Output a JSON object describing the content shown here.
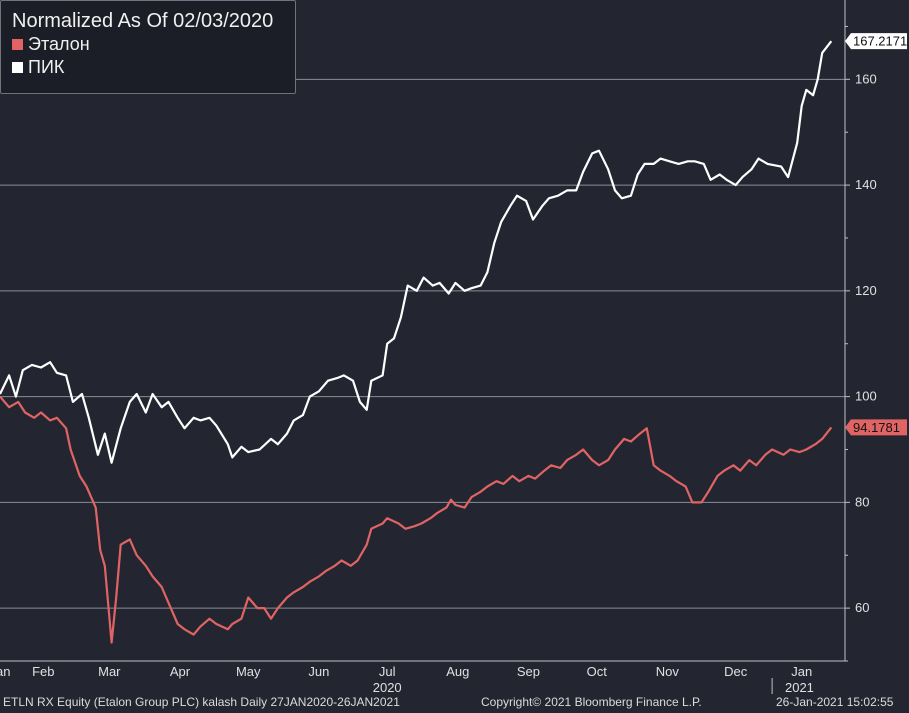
{
  "legend": {
    "title": "Normalized As Of 02/03/2020",
    "items": [
      {
        "label": "Эталон",
        "color": "#e06464"
      },
      {
        "label": "ПИК",
        "color": "#ffffff"
      }
    ]
  },
  "footer": {
    "left": "ETLN RX Equity (Etalon Group PLC) kalash  Daily 27JAN2020-26JAN2021",
    "center": "Copyright© 2021 Bloomberg Finance L.P.",
    "right": "26-Jan-2021 15:02:55"
  },
  "chart_data": {
    "type": "line",
    "title": "Normalized As Of 02/03/2020",
    "x_labels": [
      {
        "date": "2020-01-27",
        "label": "Jan"
      },
      {
        "date": "2020-02-15",
        "label": "Feb"
      },
      {
        "date": "2020-03-15",
        "label": "Mar"
      },
      {
        "date": "2020-04-15",
        "label": "Apr"
      },
      {
        "date": "2020-05-15",
        "label": "May"
      },
      {
        "date": "2020-06-15",
        "label": "Jun"
      },
      {
        "date": "2020-07-15",
        "label": "Jul"
      },
      {
        "date": "2020-08-15",
        "label": "Aug"
      },
      {
        "date": "2020-09-15",
        "label": "Sep"
      },
      {
        "date": "2020-10-15",
        "label": "Oct"
      },
      {
        "date": "2020-11-15",
        "label": "Nov"
      },
      {
        "date": "2020-12-15",
        "label": "Dec"
      },
      {
        "date": "2021-01-13",
        "label": "Jan"
      }
    ],
    "year_labels": [
      {
        "date": "2020-07-15",
        "label": "2020"
      },
      {
        "date": "2021-01-12",
        "label": "2021"
      }
    ],
    "x_range": [
      "2020-01-27",
      "2021-02-01"
    ],
    "y_ticks": [
      60,
      80,
      100,
      120,
      140,
      160
    ],
    "ylim": [
      50,
      175
    ],
    "grid": true,
    "last_values": [
      {
        "series": "ПИК",
        "label": "167.2171",
        "value": 167.2171
      },
      {
        "series": "Эталон",
        "label": "94.1781",
        "value": 94.1781
      }
    ],
    "series": [
      {
        "name": "ПИК",
        "color": "#ffffff",
        "points": [
          [
            "2020-01-27",
            100.5
          ],
          [
            "2020-01-31",
            104
          ],
          [
            "2020-02-03",
            100
          ],
          [
            "2020-02-06",
            105
          ],
          [
            "2020-02-10",
            106
          ],
          [
            "2020-02-14",
            105.5
          ],
          [
            "2020-02-18",
            106.5
          ],
          [
            "2020-02-21",
            104.5
          ],
          [
            "2020-02-25",
            104
          ],
          [
            "2020-02-28",
            99
          ],
          [
            "2020-03-03",
            100.5
          ],
          [
            "2020-03-06",
            96
          ],
          [
            "2020-03-10",
            89
          ],
          [
            "2020-03-13",
            93
          ],
          [
            "2020-03-16",
            87.5
          ],
          [
            "2020-03-20",
            94
          ],
          [
            "2020-03-24",
            99
          ],
          [
            "2020-03-27",
            100.5
          ],
          [
            "2020-03-31",
            97
          ],
          [
            "2020-04-03",
            100.5
          ],
          [
            "2020-04-07",
            98
          ],
          [
            "2020-04-10",
            99
          ],
          [
            "2020-04-14",
            96
          ],
          [
            "2020-04-17",
            94
          ],
          [
            "2020-04-21",
            96
          ],
          [
            "2020-04-24",
            95.5
          ],
          [
            "2020-04-28",
            96
          ],
          [
            "2020-05-01",
            94.5
          ],
          [
            "2020-05-06",
            91
          ],
          [
            "2020-05-08",
            88.5
          ],
          [
            "2020-05-12",
            90.5
          ],
          [
            "2020-05-15",
            89.5
          ],
          [
            "2020-05-20",
            90
          ],
          [
            "2020-05-25",
            92
          ],
          [
            "2020-05-28",
            91
          ],
          [
            "2020-06-01",
            93
          ],
          [
            "2020-06-04",
            95.5
          ],
          [
            "2020-06-08",
            96.5
          ],
          [
            "2020-06-11",
            100
          ],
          [
            "2020-06-15",
            101
          ],
          [
            "2020-06-19",
            103
          ],
          [
            "2020-06-23",
            103.5
          ],
          [
            "2020-06-26",
            104
          ],
          [
            "2020-06-30",
            103
          ],
          [
            "2020-07-03",
            99
          ],
          [
            "2020-07-06",
            97.5
          ],
          [
            "2020-07-08",
            103
          ],
          [
            "2020-07-13",
            104
          ],
          [
            "2020-07-15",
            110
          ],
          [
            "2020-07-18",
            111
          ],
          [
            "2020-07-21",
            115
          ],
          [
            "2020-07-24",
            121
          ],
          [
            "2020-07-28",
            120
          ],
          [
            "2020-07-31",
            122.5
          ],
          [
            "2020-08-04",
            121
          ],
          [
            "2020-08-07",
            121.5
          ],
          [
            "2020-08-11",
            119.5
          ],
          [
            "2020-08-14",
            121.5
          ],
          [
            "2020-08-18",
            120
          ],
          [
            "2020-08-21",
            120.5
          ],
          [
            "2020-08-25",
            121
          ],
          [
            "2020-08-28",
            123.5
          ],
          [
            "2020-08-31",
            129
          ],
          [
            "2020-09-03",
            133
          ],
          [
            "2020-09-07",
            136
          ],
          [
            "2020-09-10",
            138
          ],
          [
            "2020-09-14",
            137
          ],
          [
            "2020-09-17",
            133.5
          ],
          [
            "2020-09-21",
            136
          ],
          [
            "2020-09-24",
            137.5
          ],
          [
            "2020-09-28",
            138
          ],
          [
            "2020-10-02",
            139
          ],
          [
            "2020-10-06",
            139
          ],
          [
            "2020-10-09",
            142.5
          ],
          [
            "2020-10-13",
            146
          ],
          [
            "2020-10-16",
            146.5
          ],
          [
            "2020-10-20",
            143
          ],
          [
            "2020-10-23",
            139
          ],
          [
            "2020-10-26",
            137.5
          ],
          [
            "2020-10-30",
            138
          ],
          [
            "2020-11-02",
            142
          ],
          [
            "2020-11-05",
            144
          ],
          [
            "2020-11-09",
            144
          ],
          [
            "2020-11-12",
            145
          ],
          [
            "2020-11-16",
            144.5
          ],
          [
            "2020-11-20",
            144
          ],
          [
            "2020-11-24",
            144.5
          ],
          [
            "2020-11-27",
            144.5
          ],
          [
            "2020-12-01",
            144
          ],
          [
            "2020-12-04",
            141
          ],
          [
            "2020-12-08",
            142
          ],
          [
            "2020-12-11",
            141
          ],
          [
            "2020-12-15",
            140
          ],
          [
            "2020-12-18",
            141.5
          ],
          [
            "2020-12-22",
            143
          ],
          [
            "2020-12-25",
            145
          ],
          [
            "2020-12-29",
            144
          ],
          [
            "2021-01-04",
            143.5
          ],
          [
            "2021-01-07",
            141.5
          ],
          [
            "2021-01-11",
            148
          ],
          [
            "2021-01-13",
            155
          ],
          [
            "2021-01-15",
            158
          ],
          [
            "2021-01-18",
            157
          ],
          [
            "2021-01-20",
            160
          ],
          [
            "2021-01-22",
            165
          ],
          [
            "2021-01-26",
            167.2171
          ]
        ]
      },
      {
        "name": "Эталон",
        "color": "#e06464",
        "points": [
          [
            "2020-01-27",
            100
          ],
          [
            "2020-01-31",
            98
          ],
          [
            "2020-02-04",
            99
          ],
          [
            "2020-02-07",
            97
          ],
          [
            "2020-02-11",
            96
          ],
          [
            "2020-02-14",
            97
          ],
          [
            "2020-02-18",
            95.5
          ],
          [
            "2020-02-21",
            96
          ],
          [
            "2020-02-25",
            94
          ],
          [
            "2020-02-27",
            90
          ],
          [
            "2020-03-02",
            85
          ],
          [
            "2020-03-05",
            83
          ],
          [
            "2020-03-09",
            79
          ],
          [
            "2020-03-11",
            71
          ],
          [
            "2020-03-13",
            68
          ],
          [
            "2020-03-16",
            53.5
          ],
          [
            "2020-03-18",
            62
          ],
          [
            "2020-03-20",
            72
          ],
          [
            "2020-03-24",
            73
          ],
          [
            "2020-03-27",
            70
          ],
          [
            "2020-03-31",
            68
          ],
          [
            "2020-04-03",
            66
          ],
          [
            "2020-04-07",
            64
          ],
          [
            "2020-04-10",
            61
          ],
          [
            "2020-04-14",
            57
          ],
          [
            "2020-04-17",
            56
          ],
          [
            "2020-04-21",
            55
          ],
          [
            "2020-04-24",
            56.5
          ],
          [
            "2020-04-28",
            58
          ],
          [
            "2020-05-01",
            57
          ],
          [
            "2020-05-06",
            56
          ],
          [
            "2020-05-08",
            57
          ],
          [
            "2020-05-12",
            58
          ],
          [
            "2020-05-15",
            62
          ],
          [
            "2020-05-19",
            60
          ],
          [
            "2020-05-22",
            60
          ],
          [
            "2020-05-25",
            58
          ],
          [
            "2020-05-28",
            60
          ],
          [
            "2020-06-01",
            62
          ],
          [
            "2020-06-04",
            63
          ],
          [
            "2020-06-08",
            64
          ],
          [
            "2020-06-11",
            65
          ],
          [
            "2020-06-15",
            66
          ],
          [
            "2020-06-18",
            67
          ],
          [
            "2020-06-22",
            68
          ],
          [
            "2020-06-25",
            69
          ],
          [
            "2020-06-29",
            68
          ],
          [
            "2020-07-02",
            69
          ],
          [
            "2020-07-06",
            72
          ],
          [
            "2020-07-08",
            75
          ],
          [
            "2020-07-13",
            76
          ],
          [
            "2020-07-15",
            77
          ],
          [
            "2020-07-20",
            76
          ],
          [
            "2020-07-23",
            75
          ],
          [
            "2020-07-27",
            75.5
          ],
          [
            "2020-07-30",
            76
          ],
          [
            "2020-08-03",
            77
          ],
          [
            "2020-08-06",
            78
          ],
          [
            "2020-08-10",
            79
          ],
          [
            "2020-08-12",
            80.5
          ],
          [
            "2020-08-14",
            79.5
          ],
          [
            "2020-08-18",
            79
          ],
          [
            "2020-08-21",
            81
          ],
          [
            "2020-08-25",
            82
          ],
          [
            "2020-08-28",
            83
          ],
          [
            "2020-09-01",
            84
          ],
          [
            "2020-09-04",
            83.5
          ],
          [
            "2020-09-08",
            85
          ],
          [
            "2020-09-11",
            84
          ],
          [
            "2020-09-15",
            85
          ],
          [
            "2020-09-18",
            84.5
          ],
          [
            "2020-09-22",
            86
          ],
          [
            "2020-09-25",
            87
          ],
          [
            "2020-09-29",
            86.5
          ],
          [
            "2020-10-02",
            88
          ],
          [
            "2020-10-06",
            89
          ],
          [
            "2020-10-09",
            90
          ],
          [
            "2020-10-13",
            88
          ],
          [
            "2020-10-16",
            87
          ],
          [
            "2020-10-20",
            88
          ],
          [
            "2020-10-23",
            90
          ],
          [
            "2020-10-27",
            92
          ],
          [
            "2020-10-30",
            91.5
          ],
          [
            "2020-11-03",
            93
          ],
          [
            "2020-11-06",
            94
          ],
          [
            "2020-11-09",
            87
          ],
          [
            "2020-11-12",
            86
          ],
          [
            "2020-11-16",
            85
          ],
          [
            "2020-11-19",
            84
          ],
          [
            "2020-11-23",
            83
          ],
          [
            "2020-11-26",
            80
          ],
          [
            "2020-11-30",
            80
          ],
          [
            "2020-12-03",
            82
          ],
          [
            "2020-12-07",
            85
          ],
          [
            "2020-12-10",
            86
          ],
          [
            "2020-12-14",
            87
          ],
          [
            "2020-12-17",
            86
          ],
          [
            "2020-12-21",
            88
          ],
          [
            "2020-12-24",
            87
          ],
          [
            "2020-12-28",
            89
          ],
          [
            "2020-12-31",
            90
          ],
          [
            "2021-01-05",
            89
          ],
          [
            "2021-01-08",
            90
          ],
          [
            "2021-01-12",
            89.5
          ],
          [
            "2021-01-15",
            90
          ],
          [
            "2021-01-19",
            91
          ],
          [
            "2021-01-22",
            92
          ],
          [
            "2021-01-26",
            94.1781
          ]
        ]
      }
    ]
  }
}
